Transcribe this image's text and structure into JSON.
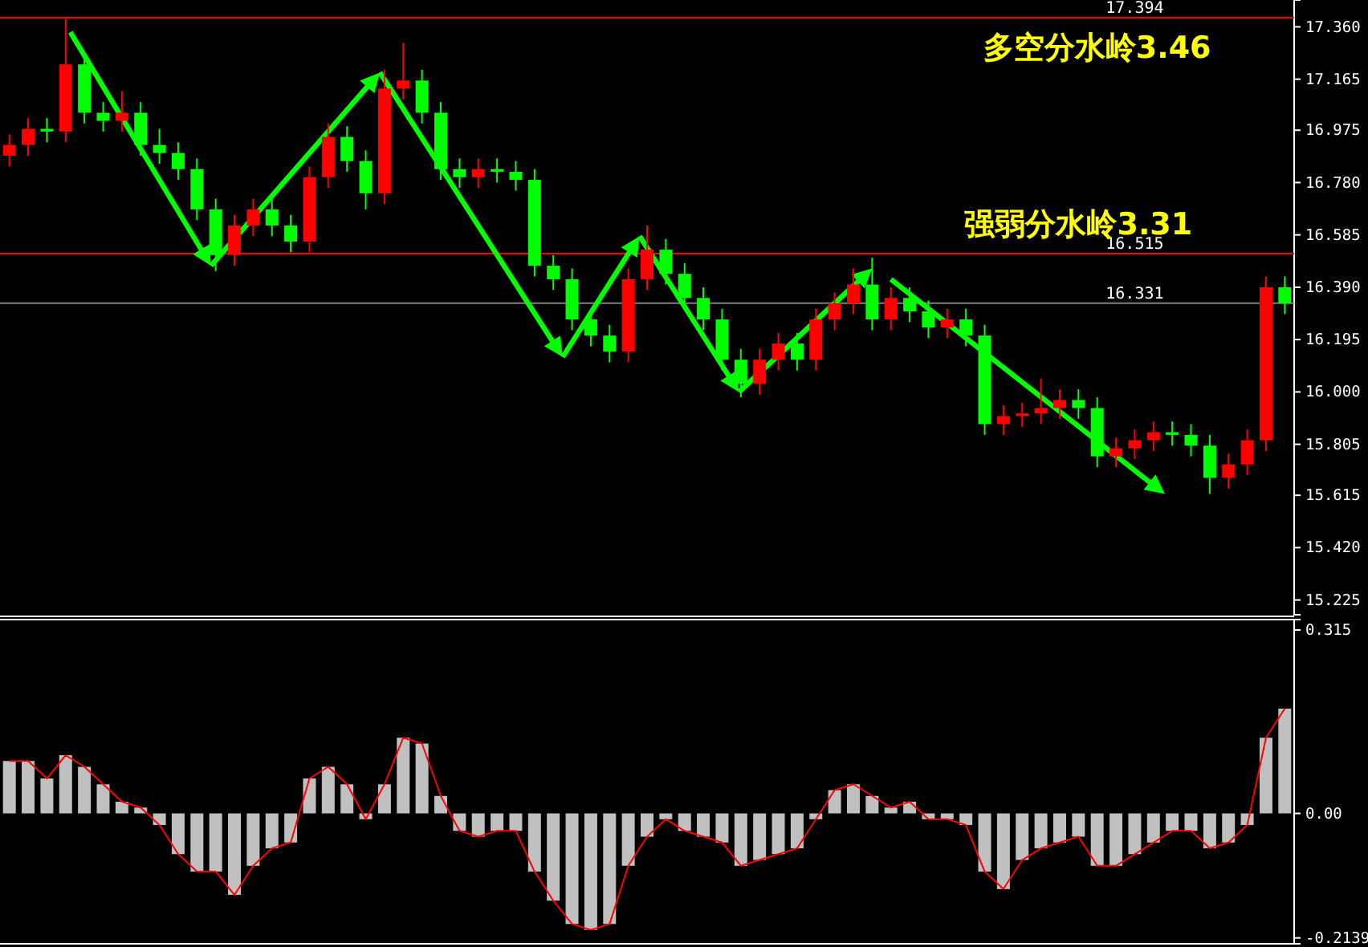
{
  "chart_data": [
    {
      "type": "candlestick",
      "categories": [
        null,
        null,
        null,
        null,
        null,
        null,
        null,
        null,
        null,
        null,
        null,
        null,
        null,
        null,
        null,
        null,
        null,
        null,
        null,
        null,
        null,
        null,
        null,
        null,
        null,
        null,
        null,
        null,
        null,
        null,
        null,
        null,
        null,
        null,
        null,
        null,
        null,
        null,
        null,
        null,
        null,
        null,
        null,
        null,
        null,
        null,
        null,
        null,
        null,
        null,
        null,
        null,
        null,
        null,
        null,
        null,
        null,
        null,
        null,
        null,
        null,
        null,
        null,
        null,
        null,
        null,
        null,
        null,
        null
      ],
      "ohlc": [
        [
          16.88,
          16.96,
          16.84,
          16.92
        ],
        [
          16.92,
          17.02,
          16.88,
          16.98
        ],
        [
          16.98,
          17.02,
          16.93,
          16.97
        ],
        [
          16.97,
          17.39,
          16.93,
          17.22
        ],
        [
          17.22,
          17.26,
          17.0,
          17.04
        ],
        [
          17.04,
          17.08,
          16.97,
          17.01
        ],
        [
          17.01,
          17.12,
          16.97,
          17.04
        ],
        [
          17.04,
          17.08,
          16.88,
          16.92
        ],
        [
          16.92,
          16.98,
          16.85,
          16.89
        ],
        [
          16.89,
          16.93,
          16.79,
          16.83
        ],
        [
          16.83,
          16.87,
          16.64,
          16.68
        ],
        [
          16.68,
          16.72,
          16.45,
          16.51
        ],
        [
          16.51,
          16.66,
          16.47,
          16.62
        ],
        [
          16.62,
          16.72,
          16.58,
          16.68
        ],
        [
          16.68,
          16.72,
          16.58,
          16.62
        ],
        [
          16.62,
          16.66,
          16.52,
          16.56
        ],
        [
          16.56,
          16.84,
          16.52,
          16.8
        ],
        [
          16.8,
          17.0,
          16.76,
          16.95
        ],
        [
          16.95,
          16.99,
          16.82,
          16.86
        ],
        [
          16.86,
          16.9,
          16.68,
          16.74
        ],
        [
          16.74,
          17.2,
          16.7,
          17.13
        ],
        [
          17.13,
          17.3,
          17.09,
          17.16
        ],
        [
          17.16,
          17.2,
          17.0,
          17.04
        ],
        [
          17.04,
          17.08,
          16.79,
          16.83
        ],
        [
          16.83,
          16.87,
          16.76,
          16.8
        ],
        [
          16.8,
          16.87,
          16.76,
          16.83
        ],
        [
          16.83,
          16.87,
          16.78,
          16.82
        ],
        [
          16.82,
          16.86,
          16.75,
          16.79
        ],
        [
          16.79,
          16.83,
          16.43,
          16.47
        ],
        [
          16.47,
          16.51,
          16.38,
          16.42
        ],
        [
          16.42,
          16.46,
          16.23,
          16.27
        ],
        [
          16.27,
          16.31,
          16.17,
          16.21
        ],
        [
          16.21,
          16.25,
          16.11,
          16.15
        ],
        [
          16.15,
          16.46,
          16.11,
          16.42
        ],
        [
          16.42,
          16.62,
          16.38,
          16.53
        ],
        [
          16.53,
          16.57,
          16.4,
          16.44
        ],
        [
          16.44,
          16.48,
          16.31,
          16.35
        ],
        [
          16.35,
          16.39,
          16.23,
          16.27
        ],
        [
          16.27,
          16.31,
          16.08,
          16.12
        ],
        [
          16.12,
          16.16,
          15.98,
          16.03
        ],
        [
          16.03,
          16.16,
          15.99,
          16.12
        ],
        [
          16.12,
          16.22,
          16.08,
          16.18
        ],
        [
          16.18,
          16.22,
          16.08,
          16.12
        ],
        [
          16.12,
          16.31,
          16.08,
          16.27
        ],
        [
          16.27,
          16.37,
          16.23,
          16.33
        ],
        [
          16.33,
          16.46,
          16.29,
          16.4
        ],
        [
          16.4,
          16.5,
          16.23,
          16.27
        ],
        [
          16.27,
          16.39,
          16.23,
          16.35
        ],
        [
          16.35,
          16.39,
          16.26,
          16.3
        ],
        [
          16.3,
          16.34,
          16.2,
          16.24
        ],
        [
          16.24,
          16.31,
          16.2,
          16.27
        ],
        [
          16.27,
          16.31,
          16.17,
          16.21
        ],
        [
          16.21,
          16.25,
          15.84,
          15.88
        ],
        [
          15.88,
          15.95,
          15.84,
          15.91
        ],
        [
          15.91,
          15.96,
          15.87,
          15.92
        ],
        [
          15.92,
          16.05,
          15.88,
          15.94
        ],
        [
          15.94,
          16.01,
          15.9,
          15.97
        ],
        [
          15.97,
          16.01,
          15.9,
          15.94
        ],
        [
          15.94,
          15.98,
          15.72,
          15.76
        ],
        [
          15.76,
          15.83,
          15.72,
          15.79
        ],
        [
          15.79,
          15.86,
          15.75,
          15.82
        ],
        [
          15.82,
          15.89,
          15.78,
          15.85
        ],
        [
          15.85,
          15.89,
          15.8,
          15.84
        ],
        [
          15.84,
          15.88,
          15.76,
          15.8
        ],
        [
          15.8,
          15.84,
          15.62,
          15.68
        ],
        [
          15.68,
          15.77,
          15.64,
          15.73
        ],
        [
          15.73,
          15.86,
          15.69,
          15.82
        ],
        [
          15.82,
          16.43,
          15.78,
          16.39
        ],
        [
          16.39,
          16.43,
          16.29,
          16.33
        ]
      ],
      "ylim": [
        15.17,
        17.46
      ],
      "yticks": [
        {
          "value": 17.36,
          "label": "17.360"
        },
        17.165,
        16.975,
        {
          "value": 16.78,
          "label": "16.780"
        },
        16.585,
        {
          "value": 16.39,
          "label": "16.390"
        },
        16.195,
        {
          "value": 16,
          "label": "16.000"
        },
        15.805,
        15.615,
        {
          "value": 15.42,
          "label": "15.420"
        },
        15.225
      ],
      "ref_lines": [
        {
          "axis": "y",
          "value": 17.394,
          "label": "17.394",
          "color": "#ff0000"
        },
        {
          "axis": "y",
          "value": 16.515,
          "label": "16.515",
          "color": "#ff0000"
        },
        {
          "axis": "y",
          "value": 16.331,
          "label": "16.331",
          "color": "#808080"
        }
      ],
      "annotations": [
        "多空分水岭3.46",
        "强弱分水岭3.31"
      ],
      "tick_labels": "y"
    },
    {
      "type": "bar",
      "categories": [
        null,
        null,
        null,
        null,
        null,
        null,
        null,
        null,
        null,
        null,
        null,
        null,
        null,
        null,
        null,
        null,
        null,
        null,
        null,
        null,
        null,
        null,
        null,
        null,
        null,
        null,
        null,
        null,
        null,
        null,
        null,
        null,
        null,
        null,
        null,
        null,
        null,
        null,
        null,
        null,
        null,
        null,
        null,
        null,
        null,
        null,
        null,
        null,
        null,
        null,
        null,
        null,
        null,
        null,
        null,
        null,
        null,
        null,
        null,
        null,
        null,
        null,
        null,
        null,
        null,
        null,
        null,
        null,
        null
      ],
      "series": [
        {
          "type": "bar",
          "color": "#c0c0c0",
          "values": [
            0.09,
            0.09,
            0.06,
            0.1,
            0.08,
            0.05,
            0.02,
            0.01,
            -0.02,
            -0.07,
            -0.1,
            -0.1,
            -0.14,
            -0.09,
            -0.06,
            -0.05,
            0.06,
            0.08,
            0.05,
            -0.01,
            0.05,
            0.13,
            0.12,
            0.03,
            -0.03,
            -0.04,
            -0.03,
            -0.03,
            -0.1,
            -0.15,
            -0.19,
            -0.2,
            -0.19,
            -0.09,
            -0.04,
            -0.01,
            -0.03,
            -0.04,
            -0.05,
            -0.09,
            -0.08,
            -0.07,
            -0.06,
            -0.01,
            0.04,
            0.05,
            0.03,
            0.01,
            0.02,
            -0.01,
            -0.01,
            -0.02,
            -0.1,
            -0.13,
            -0.08,
            -0.06,
            -0.05,
            -0.04,
            -0.09,
            -0.09,
            -0.07,
            -0.05,
            -0.03,
            -0.03,
            -0.06,
            -0.05,
            -0.02,
            0.13,
            0.18
          ]
        },
        {
          "type": "line",
          "color": "#ff0000",
          "values": [
            0.09,
            0.09,
            0.06,
            0.1,
            0.08,
            0.05,
            0.02,
            0.01,
            -0.02,
            -0.07,
            -0.1,
            -0.1,
            -0.14,
            -0.09,
            -0.06,
            -0.05,
            0.06,
            0.08,
            0.05,
            -0.01,
            0.05,
            0.13,
            0.12,
            0.03,
            -0.03,
            -0.04,
            -0.03,
            -0.03,
            -0.1,
            -0.15,
            -0.19,
            -0.2,
            -0.19,
            -0.09,
            -0.04,
            -0.01,
            -0.03,
            -0.04,
            -0.05,
            -0.09,
            -0.08,
            -0.07,
            -0.06,
            -0.01,
            0.04,
            0.05,
            0.03,
            0.01,
            0.02,
            -0.01,
            -0.01,
            -0.02,
            -0.1,
            -0.13,
            -0.08,
            -0.06,
            -0.05,
            -0.04,
            -0.09,
            -0.09,
            -0.07,
            -0.05,
            -0.03,
            -0.03,
            -0.06,
            -0.05,
            -0.02,
            0.13,
            0.18
          ]
        }
      ],
      "ylim": [
        -0.224,
        0.333
      ],
      "yticks": [
        0.315,
        {
          "value": 0,
          "label": "0.00"
        },
        -0.2139
      ],
      "tick_labels": "y"
    }
  ]
}
